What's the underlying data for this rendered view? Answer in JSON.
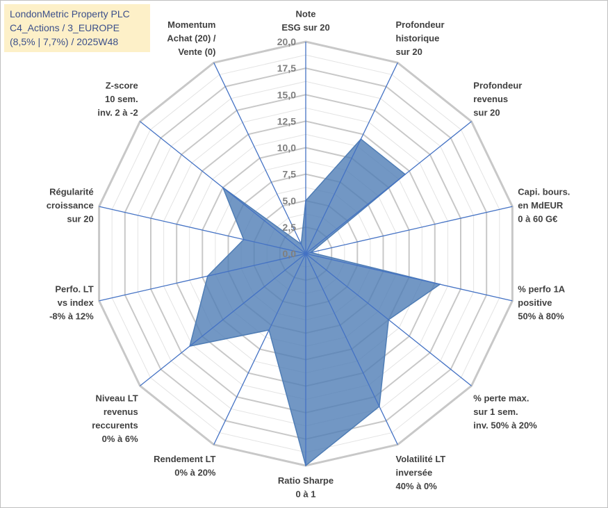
{
  "title_lines": [
    "LondonMetric Property PLC",
    "C4_Actions / 3_EUROPE",
    "(8,5% | 7,7%) / 2025W48"
  ],
  "chart_data": {
    "type": "radar",
    "rlim": [
      0,
      20
    ],
    "tick_labels": [
      "0,0",
      "2,5",
      "5,0",
      "7,5",
      "10,0",
      "12,5",
      "15,0",
      "17,5",
      "20,0"
    ],
    "grid": true,
    "axes": [
      {
        "lines": [
          "Note",
          "ESG sur 20"
        ],
        "value": 5
      },
      {
        "lines": [
          "Profondeur",
          "historique",
          "sur 20"
        ],
        "value": 12
      },
      {
        "lines": [
          "Profondeur",
          "revenus",
          "sur 20"
        ],
        "value": 12
      },
      {
        "lines": [
          "Capi. bours.",
          "en MdEUR",
          "0 à 60 G€"
        ],
        "value": 0.5
      },
      {
        "lines": [
          "% perfo 1A",
          "positive",
          "50% à 80%"
        ],
        "value": 13
      },
      {
        "lines": [
          "% perte max.",
          "sur 1 sem.",
          "inv. 50% à 20%"
        ],
        "value": 10
      },
      {
        "lines": [
          "Volatilité LT",
          "inversée",
          "40% à 0%"
        ],
        "value": 16
      },
      {
        "lines": [
          "Ratio Sharpe",
          "0 à 1"
        ],
        "value": 20
      },
      {
        "lines": [
          "Rendement LT",
          "0% à 20%"
        ],
        "value": 8
      },
      {
        "lines": [
          "Niveau LT",
          "revenus",
          "reccurents",
          "0% à 6%"
        ],
        "value": 14
      },
      {
        "lines": [
          "Perfo. LT",
          "vs index",
          "-8% à 12%"
        ],
        "value": 9.5
      },
      {
        "lines": [
          "Régularité",
          "croissance",
          "sur 20"
        ],
        "value": 6
      },
      {
        "lines": [
          "Z-score",
          "10 sem.",
          "inv. 2 à -2"
        ],
        "value": 10
      },
      {
        "lines": [
          "Momentum",
          "Achat (20) /",
          "Vente (0)"
        ],
        "value": 1
      }
    ],
    "colors": {
      "fill": "#4f7db5",
      "axis": "#4472c4",
      "grid_major": "#c8c8c8",
      "grid_minor": "#e3e3e3"
    }
  }
}
